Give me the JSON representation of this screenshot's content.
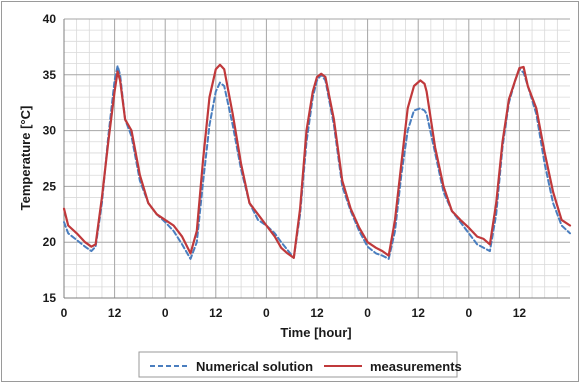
{
  "chart_data": {
    "type": "line",
    "xlabel": "Time [hour]",
    "ylabel": "Temperature [°C]",
    "xlim": [
      0,
      120
    ],
    "ylim": [
      15,
      40
    ],
    "y_ticks": [
      15,
      20,
      25,
      30,
      35,
      40
    ],
    "x_tick_positions": [
      0,
      12,
      24,
      36,
      48,
      60,
      72,
      84,
      96,
      108
    ],
    "x_tick_labels": [
      "0",
      "12",
      "0",
      "12",
      "0",
      "12",
      "0",
      "12",
      "0",
      "12"
    ],
    "grid": true,
    "legend_position": "bottom",
    "series": [
      {
        "name": "Numerical solution",
        "color": "#4a7ebf",
        "style": "dashed",
        "x": [
          0,
          1,
          3,
          5,
          6.5,
          7.5,
          9,
          10.5,
          12,
          12.7,
          13.3,
          14.5,
          16,
          18,
          20,
          22,
          24,
          26,
          28,
          30,
          31.5,
          33,
          34.5,
          36,
          37,
          38,
          40,
          42,
          44,
          46,
          48,
          50,
          51.5,
          53,
          54.5,
          56,
          57.5,
          59,
          60,
          61,
          62,
          64,
          66,
          68,
          70,
          72,
          74,
          75.5,
          77,
          78.5,
          80,
          81.5,
          83,
          84.5,
          85.5,
          86,
          88,
          90,
          92,
          94,
          96,
          98,
          99.5,
          101,
          102.5,
          104,
          105.5,
          107,
          108,
          109,
          110,
          112,
          114,
          116,
          118,
          120
        ],
        "y": [
          21.8,
          20.8,
          20.2,
          19.6,
          19.2,
          19.6,
          23.5,
          29.5,
          34.5,
          35.8,
          35.0,
          31.0,
          29.5,
          25.5,
          23.5,
          22.5,
          21.8,
          21.0,
          19.8,
          18.5,
          20.0,
          25.5,
          30.5,
          33.5,
          34.3,
          34.0,
          30.5,
          26.5,
          23.5,
          22.0,
          21.5,
          20.8,
          20.0,
          19.3,
          18.6,
          22.5,
          29.0,
          33.0,
          34.5,
          35.0,
          34.5,
          30.5,
          25.0,
          22.8,
          21.0,
          19.6,
          19.0,
          18.8,
          18.5,
          21.0,
          26.0,
          30.0,
          31.8,
          32.0,
          31.8,
          31.5,
          28.0,
          24.5,
          22.8,
          21.8,
          20.8,
          19.8,
          19.5,
          19.2,
          22.5,
          28.5,
          32.5,
          34.5,
          35.5,
          35.2,
          34.0,
          31.5,
          27.0,
          23.5,
          21.5,
          20.8
        ]
      },
      {
        "name": "measurements",
        "color": "#c0393b",
        "style": "solid",
        "x": [
          0,
          1,
          3,
          5,
          6.5,
          7.5,
          9,
          10.5,
          12,
          12.7,
          13.3,
          14.5,
          16,
          18,
          20,
          22,
          24,
          26,
          28,
          30,
          31.5,
          33,
          34.5,
          36,
          37,
          38,
          40,
          42,
          44,
          46,
          48,
          50,
          51.5,
          53,
          54.5,
          56,
          57.5,
          59,
          60,
          61,
          62,
          64,
          66,
          68,
          70,
          72,
          74,
          75.5,
          77,
          78.5,
          80,
          81.5,
          83,
          84.5,
          85.5,
          86,
          88,
          90,
          92,
          94,
          96,
          98,
          99.5,
          101,
          102.5,
          104,
          105.5,
          107,
          108,
          109,
          110,
          112,
          114,
          116,
          118,
          120
        ],
        "y": [
          23.0,
          21.5,
          20.8,
          20.0,
          19.6,
          19.8,
          24.0,
          29.0,
          33.5,
          35.3,
          34.5,
          31.0,
          30.0,
          26.0,
          23.5,
          22.5,
          22.0,
          21.5,
          20.5,
          19.0,
          21.0,
          27.5,
          33.0,
          35.5,
          35.9,
          35.5,
          31.5,
          27.0,
          23.5,
          22.5,
          21.5,
          20.5,
          19.5,
          19.0,
          18.6,
          23.0,
          30.0,
          33.5,
          34.8,
          35.1,
          34.8,
          31.0,
          25.5,
          23.0,
          21.3,
          20.0,
          19.5,
          19.2,
          18.8,
          22.0,
          27.0,
          32.0,
          34.0,
          34.5,
          34.2,
          33.5,
          28.5,
          25.0,
          22.8,
          22.0,
          21.3,
          20.5,
          20.3,
          19.8,
          23.5,
          29.0,
          32.8,
          34.5,
          35.6,
          35.7,
          34.0,
          32.0,
          28.0,
          24.5,
          22.0,
          21.5
        ]
      }
    ]
  }
}
